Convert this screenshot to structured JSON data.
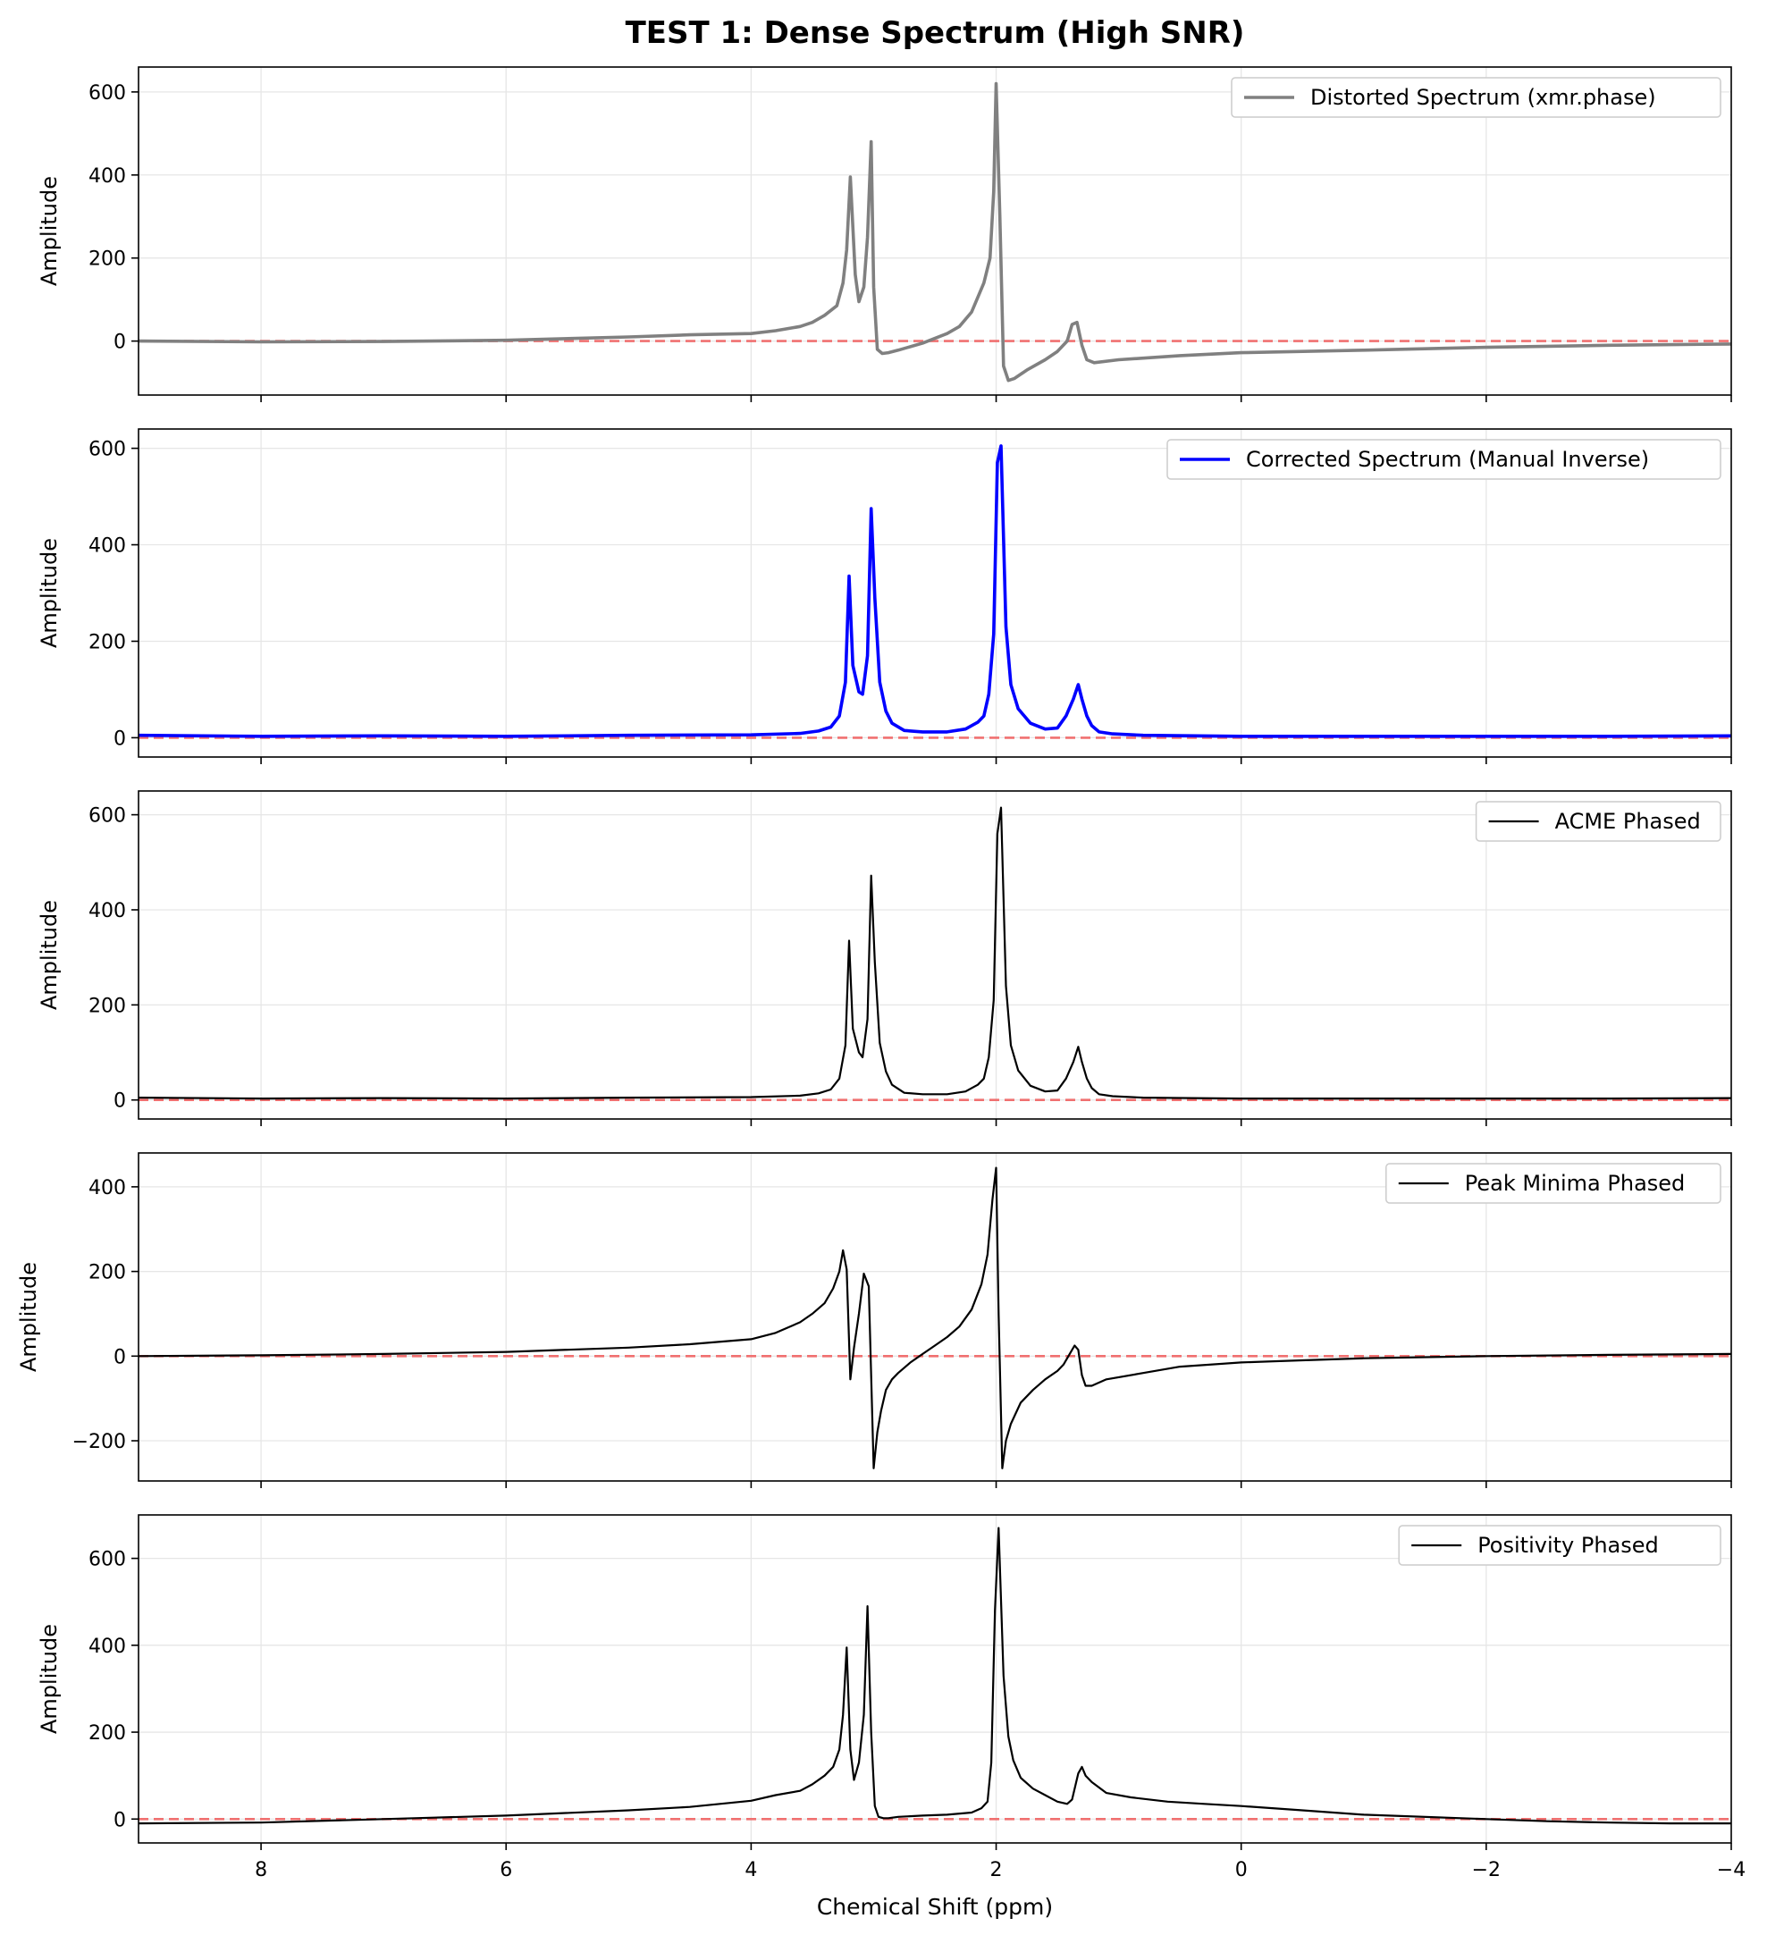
{
  "figure": {
    "title": "TEST 1: Dense Spectrum (High SNR)",
    "xlabel": "Chemical Shift (ppm)"
  },
  "chart_data": [
    {
      "type": "line",
      "legend": "Distorted Spectrum (xmr.phase)",
      "ylabel": "Amplitude",
      "color": "#808080",
      "xlim": [
        9,
        -4
      ],
      "ylim": [
        -130,
        660
      ],
      "yticks": [
        0,
        200,
        400,
        600
      ],
      "grid": true,
      "legend_position": "top-right",
      "baseline": 0,
      "series": [
        {
          "name": "Distorted Spectrum (xmr.phase)",
          "x": [
            9.0,
            8.0,
            7.0,
            6.0,
            5.0,
            4.5,
            4.0,
            3.8,
            3.6,
            3.5,
            3.4,
            3.3,
            3.25,
            3.22,
            3.19,
            3.15,
            3.12,
            3.08,
            3.05,
            3.02,
            3.0,
            2.97,
            2.93,
            2.88,
            2.8,
            2.6,
            2.4,
            2.3,
            2.2,
            2.1,
            2.05,
            2.02,
            2.0,
            1.97,
            1.94,
            1.9,
            1.85,
            1.75,
            1.6,
            1.5,
            1.42,
            1.38,
            1.34,
            1.3,
            1.26,
            1.2,
            1.0,
            0.5,
            0.0,
            -1.0,
            -2.0,
            -3.0,
            -4.0
          ],
          "y": [
            0,
            -2,
            -1,
            2,
            10,
            15,
            18,
            25,
            35,
            45,
            62,
            85,
            140,
            220,
            395,
            160,
            95,
            130,
            250,
            480,
            130,
            -20,
            -30,
            -28,
            -22,
            -5,
            18,
            35,
            70,
            140,
            200,
            360,
            620,
            300,
            -60,
            -95,
            -90,
            -70,
            -45,
            -25,
            0,
            40,
            45,
            -10,
            -45,
            -52,
            -45,
            -35,
            -28,
            -22,
            -15,
            -10,
            -7
          ]
        }
      ]
    },
    {
      "type": "line",
      "legend": "Corrected Spectrum (Manual Inverse)",
      "ylabel": "Amplitude",
      "color": "#0000ff",
      "xlim": [
        9,
        -4
      ],
      "ylim": [
        -40,
        640
      ],
      "yticks": [
        0,
        200,
        400,
        600
      ],
      "grid": true,
      "legend_position": "top-right",
      "baseline": 0,
      "series": [
        {
          "name": "Corrected Spectrum (Manual Inverse)",
          "x": [
            9.0,
            8.0,
            7.0,
            6.0,
            5.0,
            4.0,
            3.6,
            3.45,
            3.35,
            3.28,
            3.23,
            3.2,
            3.17,
            3.12,
            3.09,
            3.05,
            3.02,
            2.99,
            2.95,
            2.9,
            2.85,
            2.75,
            2.6,
            2.4,
            2.25,
            2.15,
            2.1,
            2.06,
            2.02,
            1.99,
            1.96,
            1.92,
            1.88,
            1.82,
            1.72,
            1.6,
            1.5,
            1.43,
            1.37,
            1.33,
            1.3,
            1.26,
            1.22,
            1.16,
            1.05,
            0.8,
            0.0,
            -1.0,
            -2.0,
            -3.0,
            -4.0
          ],
          "y": [
            5,
            3,
            4,
            3,
            5,
            6,
            9,
            14,
            22,
            45,
            115,
            335,
            150,
            95,
            90,
            170,
            475,
            290,
            115,
            55,
            30,
            15,
            12,
            12,
            18,
            32,
            45,
            90,
            215,
            570,
            605,
            230,
            110,
            60,
            30,
            18,
            20,
            45,
            80,
            110,
            80,
            45,
            25,
            12,
            8,
            5,
            3,
            3,
            3,
            3,
            4
          ]
        }
      ]
    },
    {
      "type": "line",
      "legend": "ACME Phased",
      "ylabel": "Amplitude",
      "color": "#000000",
      "xlim": [
        9,
        -4
      ],
      "ylim": [
        -40,
        650
      ],
      "yticks": [
        0,
        200,
        400,
        600
      ],
      "grid": true,
      "legend_position": "top-right",
      "baseline": 0,
      "series": [
        {
          "name": "ACME Phased",
          "x": [
            9.0,
            8.0,
            7.0,
            6.0,
            5.0,
            4.0,
            3.6,
            3.45,
            3.35,
            3.28,
            3.23,
            3.2,
            3.17,
            3.12,
            3.09,
            3.05,
            3.02,
            2.99,
            2.95,
            2.9,
            2.85,
            2.75,
            2.6,
            2.4,
            2.25,
            2.15,
            2.1,
            2.06,
            2.02,
            1.99,
            1.96,
            1.92,
            1.88,
            1.82,
            1.72,
            1.6,
            1.5,
            1.43,
            1.37,
            1.33,
            1.3,
            1.26,
            1.22,
            1.16,
            1.05,
            0.8,
            0.0,
            -1.0,
            -2.0,
            -3.0,
            -4.0
          ],
          "y": [
            5,
            3,
            4,
            3,
            5,
            6,
            9,
            14,
            22,
            45,
            115,
            335,
            150,
            100,
            90,
            170,
            472,
            290,
            120,
            60,
            32,
            15,
            12,
            12,
            18,
            32,
            45,
            90,
            210,
            560,
            615,
            240,
            115,
            62,
            30,
            18,
            20,
            45,
            80,
            112,
            80,
            45,
            25,
            12,
            8,
            5,
            3,
            3,
            3,
            3,
            4
          ]
        }
      ]
    },
    {
      "type": "line",
      "legend": "Peak Minima Phased",
      "ylabel": "Amplitude",
      "color": "#000000",
      "xlim": [
        9,
        -4
      ],
      "ylim": [
        -295,
        480
      ],
      "yticks": [
        -200,
        0,
        200,
        400
      ],
      "grid": true,
      "legend_position": "top-right",
      "baseline": 0,
      "series": [
        {
          "name": "Peak Minima Phased",
          "x": [
            9.0,
            8.0,
            7.0,
            6.0,
            5.0,
            4.5,
            4.0,
            3.8,
            3.6,
            3.5,
            3.4,
            3.33,
            3.28,
            3.25,
            3.22,
            3.19,
            3.16,
            3.12,
            3.08,
            3.04,
            3.0,
            2.97,
            2.94,
            2.9,
            2.85,
            2.8,
            2.7,
            2.6,
            2.5,
            2.4,
            2.3,
            2.2,
            2.12,
            2.07,
            2.03,
            2.0,
            1.98,
            1.95,
            1.92,
            1.88,
            1.8,
            1.7,
            1.6,
            1.5,
            1.45,
            1.4,
            1.36,
            1.33,
            1.3,
            1.27,
            1.22,
            1.1,
            0.8,
            0.5,
            0.0,
            -0.5,
            -1.0,
            -2.0,
            -3.0,
            -4.0
          ],
          "y": [
            0,
            2,
            5,
            10,
            20,
            28,
            40,
            55,
            80,
            100,
            125,
            160,
            200,
            250,
            205,
            -55,
            20,
            100,
            195,
            165,
            -265,
            -180,
            -130,
            -80,
            -55,
            -40,
            -15,
            5,
            25,
            45,
            70,
            110,
            170,
            240,
            370,
            445,
            100,
            -265,
            -200,
            -160,
            -110,
            -80,
            -55,
            -35,
            -20,
            5,
            25,
            15,
            -45,
            -70,
            -70,
            -55,
            -40,
            -25,
            -15,
            -10,
            -5,
            0,
            3,
            5
          ]
        }
      ]
    },
    {
      "type": "line",
      "legend": "Positivity Phased",
      "ylabel": "Amplitude",
      "color": "#000000",
      "xlim": [
        9,
        -4
      ],
      "ylim": [
        -55,
        700
      ],
      "yticks": [
        0,
        200,
        400,
        600
      ],
      "grid": true,
      "legend_position": "top-right",
      "baseline": 0,
      "series": [
        {
          "name": "Positivity Phased",
          "x": [
            9.0,
            8.0,
            7.0,
            6.0,
            5.0,
            4.5,
            4.0,
            3.8,
            3.6,
            3.5,
            3.4,
            3.33,
            3.28,
            3.25,
            3.22,
            3.19,
            3.16,
            3.12,
            3.08,
            3.05,
            3.02,
            2.99,
            2.96,
            2.92,
            2.88,
            2.8,
            2.6,
            2.4,
            2.2,
            2.12,
            2.07,
            2.04,
            2.01,
            1.98,
            1.94,
            1.9,
            1.86,
            1.8,
            1.7,
            1.6,
            1.5,
            1.42,
            1.38,
            1.33,
            1.3,
            1.27,
            1.22,
            1.1,
            0.9,
            0.6,
            0.3,
            0.0,
            -0.5,
            -1.0,
            -2.0,
            -2.5,
            -3.0,
            -3.5,
            -4.0
          ],
          "y": [
            -10,
            -8,
            0,
            8,
            20,
            28,
            42,
            55,
            65,
            80,
            100,
            120,
            160,
            240,
            395,
            160,
            90,
            130,
            240,
            490,
            200,
            30,
            5,
            2,
            2,
            5,
            8,
            10,
            15,
            25,
            40,
            130,
            480,
            670,
            330,
            190,
            135,
            95,
            70,
            55,
            40,
            35,
            45,
            105,
            120,
            100,
            85,
            60,
            50,
            40,
            35,
            30,
            20,
            10,
            0,
            -5,
            -8,
            -10,
            -10
          ]
        }
      ]
    }
  ]
}
